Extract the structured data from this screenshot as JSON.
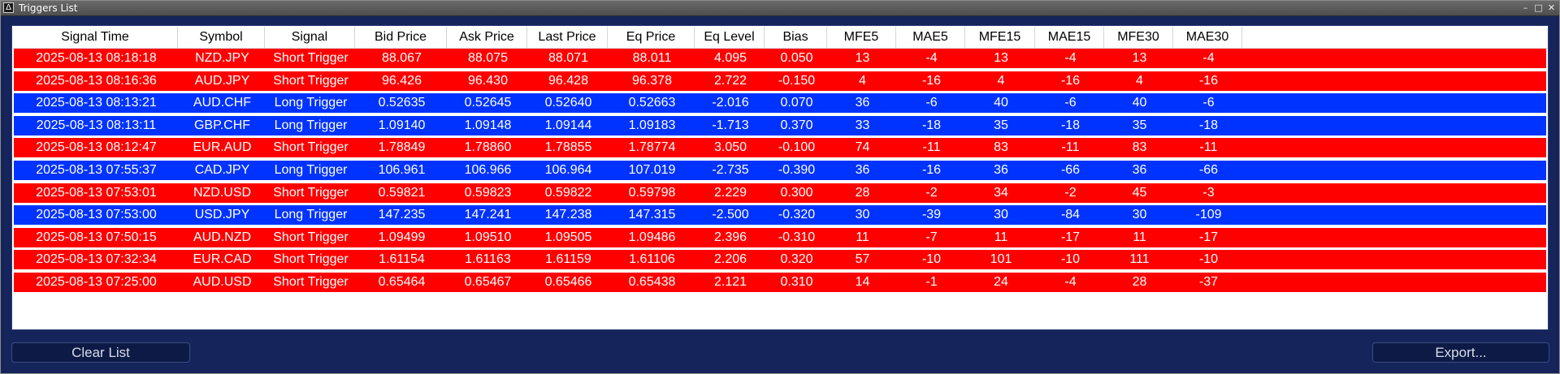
{
  "window": {
    "title": "Triggers List",
    "controls": {
      "minimize": "–",
      "maximize": "□",
      "close": "✕"
    }
  },
  "table": {
    "columns": [
      "Signal Time",
      "Symbol",
      "Signal",
      "Bid Price",
      "Ask Price",
      "Last Price",
      "Eq Price",
      "Eq Level",
      "Bias",
      "MFE5",
      "MAE5",
      "MFE15",
      "MAE15",
      "MFE30",
      "MAE30"
    ],
    "rows": [
      {
        "signal": "short",
        "cells": [
          "2025-08-13 08:18:18",
          "NZD.JPY",
          "Short Trigger",
          "88.067",
          "88.075",
          "88.071",
          "88.011",
          "4.095",
          "0.050",
          "13",
          "-4",
          "13",
          "-4",
          "13",
          "-4"
        ]
      },
      {
        "signal": "short",
        "cells": [
          "2025-08-13 08:16:36",
          "AUD.JPY",
          "Short Trigger",
          "96.426",
          "96.430",
          "96.428",
          "96.378",
          "2.722",
          "-0.150",
          "4",
          "-16",
          "4",
          "-16",
          "4",
          "-16"
        ]
      },
      {
        "signal": "long",
        "cells": [
          "2025-08-13 08:13:21",
          "AUD.CHF",
          "Long Trigger",
          "0.52635",
          "0.52645",
          "0.52640",
          "0.52663",
          "-2.016",
          "0.070",
          "36",
          "-6",
          "40",
          "-6",
          "40",
          "-6"
        ]
      },
      {
        "signal": "long",
        "cells": [
          "2025-08-13 08:13:11",
          "GBP.CHF",
          "Long Trigger",
          "1.09140",
          "1.09148",
          "1.09144",
          "1.09183",
          "-1.713",
          "0.370",
          "33",
          "-18",
          "35",
          "-18",
          "35",
          "-18"
        ]
      },
      {
        "signal": "short",
        "cells": [
          "2025-08-13 08:12:47",
          "EUR.AUD",
          "Short Trigger",
          "1.78849",
          "1.78860",
          "1.78855",
          "1.78774",
          "3.050",
          "-0.100",
          "74",
          "-11",
          "83",
          "-11",
          "83",
          "-11"
        ]
      },
      {
        "signal": "long",
        "cells": [
          "2025-08-13 07:55:37",
          "CAD.JPY",
          "Long Trigger",
          "106.961",
          "106.966",
          "106.964",
          "107.019",
          "-2.735",
          "-0.390",
          "36",
          "-16",
          "36",
          "-66",
          "36",
          "-66"
        ]
      },
      {
        "signal": "short",
        "cells": [
          "2025-08-13 07:53:01",
          "NZD.USD",
          "Short Trigger",
          "0.59821",
          "0.59823",
          "0.59822",
          "0.59798",
          "2.229",
          "0.300",
          "28",
          "-2",
          "34",
          "-2",
          "45",
          "-3"
        ]
      },
      {
        "signal": "long",
        "cells": [
          "2025-08-13 07:53:00",
          "USD.JPY",
          "Long Trigger",
          "147.235",
          "147.241",
          "147.238",
          "147.315",
          "-2.500",
          "-0.320",
          "30",
          "-39",
          "30",
          "-84",
          "30",
          "-109"
        ]
      },
      {
        "signal": "short",
        "cells": [
          "2025-08-13 07:50:15",
          "AUD.NZD",
          "Short Trigger",
          "1.09499",
          "1.09510",
          "1.09505",
          "1.09486",
          "2.396",
          "-0.310",
          "11",
          "-7",
          "11",
          "-17",
          "11",
          "-17"
        ]
      },
      {
        "signal": "short",
        "cells": [
          "2025-08-13 07:32:34",
          "EUR.CAD",
          "Short Trigger",
          "1.61154",
          "1.61163",
          "1.61159",
          "1.61106",
          "2.206",
          "0.320",
          "57",
          "-10",
          "101",
          "-10",
          "111",
          "-10"
        ]
      },
      {
        "signal": "short",
        "cells": [
          "2025-08-13 07:25:00",
          "AUD.USD",
          "Short Trigger",
          "0.65464",
          "0.65467",
          "0.65466",
          "0.65438",
          "2.121",
          "0.310",
          "14",
          "-1",
          "24",
          "-4",
          "28",
          "-37"
        ]
      }
    ]
  },
  "buttons": {
    "clear_label": "Clear List",
    "export_label": "Export..."
  },
  "colors": {
    "short_row": "#ff0000",
    "long_row": "#0033ff",
    "window_bg": "#15255b"
  }
}
